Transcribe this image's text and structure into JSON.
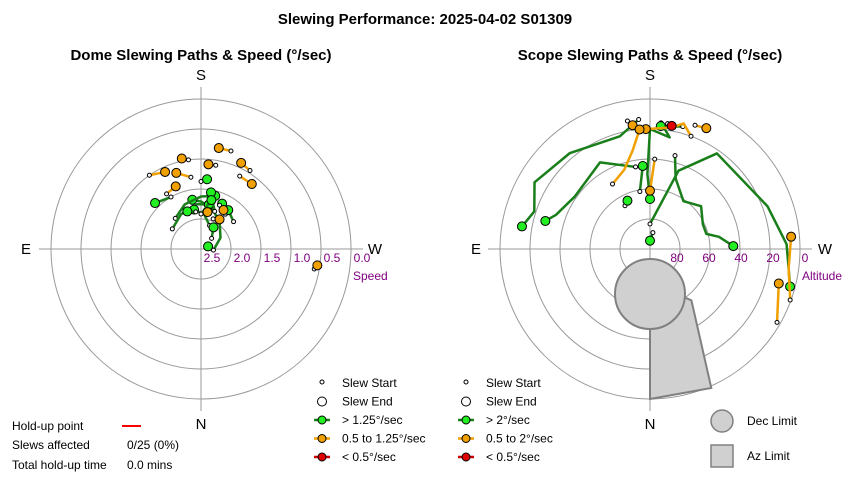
{
  "title": "Slewing Performance: 2025-04-02 S01309",
  "compass": {
    "n": "N",
    "s": "S",
    "e": "E",
    "w": "W"
  },
  "colors": {
    "fast": "#1a7f1a",
    "fast_fill": "#22ee22",
    "mid": "#f0a000",
    "mid_fill": "#f0a000",
    "slow": "#cc0000",
    "slow_fill": "#e00000",
    "grid": "#999999",
    "limit_fill": "#d0d0d0",
    "limit_stroke": "#808080",
    "purple": "#800080",
    "holdup": "#ff0000"
  },
  "stats": {
    "holdup_label": "Hold-up point",
    "affected_label": "Slews affected",
    "affected_value": "0/25 (0%)",
    "total_label": "Total hold-up time",
    "total_value": "0.0 mins"
  },
  "chart_data": [
    {
      "type": "polar-scatter",
      "title": "Dome Slewing Paths & Speed (°/sec)",
      "radial_axis": "Speed",
      "radial_ticks": [
        "2.5",
        "2.0",
        "1.5",
        "1.0",
        "0.5",
        "0.0"
      ],
      "radial_range": [
        3.0,
        0.0
      ],
      "legend": [
        {
          "label": "Slew Start",
          "icon": "small-circle"
        },
        {
          "label": "Slew End",
          "icon": "large-circle"
        },
        {
          "label": "> 1.25°/sec",
          "icon": "line-fast"
        },
        {
          "label": "0.5 to 1.25°/sec",
          "icon": "line-mid"
        },
        {
          "label": "< 0.5°/sec",
          "icon": "line-slow"
        }
      ],
      "slews": [
        {
          "category": "fast",
          "points": [
            [
              275,
              2.75
            ],
            [
              240,
              2.55
            ],
            [
              215,
              2.35
            ],
            [
              195,
              2.15
            ],
            [
              180,
              2.05
            ],
            [
              170,
              2.0
            ]
          ]
        },
        {
          "category": "fast",
          "points": [
            [
              140,
              2.2
            ],
            [
              160,
              2.05
            ],
            [
              180,
              1.95
            ],
            [
              195,
              1.9
            ]
          ]
        },
        {
          "category": "fast",
          "points": [
            [
              125,
              2.3
            ],
            [
              150,
              2.2
            ],
            [
              175,
              2.1
            ],
            [
              190,
              2.1
            ]
          ]
        },
        {
          "category": "fast",
          "points": [
            [
              200,
              2.5
            ],
            [
              185,
              2.3
            ],
            [
              170,
              2.2
            ]
          ]
        },
        {
          "category": "fast",
          "points": [
            [
              215,
              2.15
            ],
            [
              205,
              2.0
            ]
          ]
        },
        {
          "category": "fast",
          "points": [
            [
              200,
              2.2
            ],
            [
              190,
              1.85
            ]
          ]
        },
        {
          "category": "fast",
          "points": [
            [
              180,
              1.65
            ],
            [
              185,
              1.6
            ]
          ]
        },
        {
          "category": "fast",
          "points": [
            [
              180,
              2.3
            ],
            [
              192,
              2.0
            ]
          ]
        },
        {
          "category": "fast",
          "points": [
            [
              172,
              2.25
            ],
            [
              160,
              2.2
            ]
          ]
        },
        {
          "category": "fast",
          "points": [
            [
              230,
              2.15
            ],
            [
              215,
              2.05
            ]
          ]
        },
        {
          "category": "fast",
          "points": [
            [
              225,
              2.7
            ],
            [
              210,
              2.5
            ]
          ]
        },
        {
          "category": "fast",
          "points": [
            [
              255,
              2.8
            ],
            [
              250,
              2.85
            ]
          ]
        },
        {
          "category": "fast",
          "points": [
            [
              150,
              1.8
            ],
            [
              135,
              1.7
            ]
          ]
        },
        {
          "category": "mid",
          "points": [
            [
              197,
              0.95
            ],
            [
              190,
              0.95
            ]
          ]
        },
        {
          "category": "mid",
          "points": [
            [
              212,
              1.15
            ],
            [
              205,
              1.1
            ]
          ]
        },
        {
          "category": "mid",
          "points": [
            [
              208,
              1.35
            ],
            [
              218,
              1.35
            ]
          ]
        },
        {
          "category": "mid",
          "points": [
            [
              145,
              1.2
            ],
            [
              155,
              1.3
            ]
          ]
        },
        {
          "category": "mid",
          "points": [
            [
              172,
              1.2
            ],
            [
              168,
              1.15
            ]
          ]
        },
        {
          "category": "mid",
          "points": [
            [
              172,
              1.55
            ],
            [
              162,
              1.4
            ]
          ]
        },
        {
          "category": "mid",
          "points": [
            [
              148,
              1.7
            ],
            [
              158,
              1.65
            ]
          ]
        },
        {
          "category": "mid",
          "points": [
            [
              203,
              2.05
            ],
            [
              210,
              2.1
            ]
          ]
        },
        {
          "category": "mid",
          "points": [
            [
              202,
              2.35
            ],
            [
              212,
              2.3
            ]
          ]
        },
        {
          "category": "mid",
          "points": [
            [
              280,
              0.7
            ],
            [
              278,
              0.65
            ]
          ]
        },
        {
          "category": "mid",
          "points": [
            [
              190,
              1.3
            ],
            [
              185,
              1.3
            ]
          ]
        },
        {
          "category": "mid",
          "points": [
            [
              192,
              2.2
            ],
            [
              190,
              2.25
            ]
          ]
        }
      ]
    },
    {
      "type": "polar-scatter",
      "title": "Scope Slewing Paths & Speed (°/sec)",
      "radial_axis": "Altitude",
      "radial_ticks": [
        "80",
        "60",
        "40",
        "20",
        "0"
      ],
      "radial_range": [
        90,
        0
      ],
      "legend": [
        {
          "label": "Slew Start",
          "icon": "small-circle"
        },
        {
          "label": "Slew End",
          "icon": "large-circle"
        },
        {
          "label": "> 2°/sec",
          "icon": "line-fast"
        },
        {
          "label": "0.5 to 2°/sec",
          "icon": "line-mid"
        },
        {
          "label": "< 0.5°/sec",
          "icon": "line-slow"
        }
      ],
      "limits": [
        {
          "label": "Dec Limit",
          "icon": "circle-limit"
        },
        {
          "label": "Az Limit",
          "icon": "rect-limit"
        }
      ],
      "dec_limit": {
        "center_az": 0,
        "center_alt": 63,
        "radius_alt": 21
      },
      "az_limit": {
        "alt_top": 70,
        "alt_bottom": 0,
        "az_from": 0,
        "az_to": 340
      },
      "slews": [
        {
          "category": "fast",
          "points": [
            [
              180,
              75
            ],
            [
              200,
              40
            ],
            [
              215,
              20
            ],
            [
              250,
              15
            ],
            [
              268,
              8
            ],
            [
              278,
              6
            ],
            [
              285,
              3
            ]
          ]
        },
        {
          "category": "fast",
          "points": [
            [
              175,
              12
            ],
            [
              165,
              20
            ],
            [
              140,
              15
            ],
            [
              120,
              10
            ],
            [
              108,
              17
            ],
            [
              100,
              12
            ]
          ]
        },
        {
          "category": "fast",
          "points": [
            [
              185,
              14
            ],
            [
              190,
              22
            ],
            [
              180,
              18
            ],
            [
              178,
              45
            ],
            [
              180,
              60
            ]
          ]
        },
        {
          "category": "fast",
          "points": [
            [
              195,
              32
            ],
            [
              200,
              45
            ],
            [
              215,
              55
            ],
            [
              230,
              50
            ],
            [
              245,
              55
            ],
            [
              255,
              55
            ],
            [
              260,
              48
            ],
            [
              268,
              40
            ]
          ]
        },
        {
          "category": "fast",
          "points": [
            [
              170,
              40
            ],
            [
              150,
              30
            ],
            [
              125,
              35
            ],
            [
              110,
              30
            ],
            [
              105,
              25
            ]
          ]
        },
        {
          "category": "fast",
          "points": [
            [
              170,
              55
            ],
            [
              175,
              40
            ]
          ]
        },
        {
          "category": "fast",
          "points": [
            [
              190,
              80
            ],
            [
              180,
              85
            ]
          ]
        },
        {
          "category": "fast",
          "points": [
            [
              195,
              14
            ],
            [
              185,
              16
            ]
          ]
        },
        {
          "category": "fast",
          "points": [
            [
              150,
              60
            ],
            [
              155,
              58
            ]
          ]
        },
        {
          "category": "mid",
          "points": [
            [
              200,
              18
            ],
            [
              195,
              12
            ],
            [
              190,
              16
            ],
            [
              178,
              18
            ]
          ]
        },
        {
          "category": "mid",
          "points": [
            [
              170,
              12
            ],
            [
              172,
              15
            ]
          ]
        },
        {
          "category": "mid",
          "points": [
            [
              150,
              45
            ],
            [
              162,
              40
            ],
            [
              170,
              30
            ],
            [
              175,
              18
            ]
          ]
        },
        {
          "category": "mid",
          "points": [
            [
              290,
              0.5
            ],
            [
              278,
              6
            ],
            [
              265,
              5
            ]
          ]
        },
        {
          "category": "mid",
          "points": [
            [
              300,
              2
            ],
            [
              285,
              10
            ]
          ]
        },
        {
          "category": "mid",
          "points": [
            [
              183,
              36
            ],
            [
              180,
              55
            ]
          ]
        },
        {
          "category": "mid",
          "points": [
            [
              200,
              11
            ],
            [
              205,
              10
            ]
          ]
        },
        {
          "category": "slow",
          "points": [
            [
              188,
              14
            ],
            [
              190,
              15
            ]
          ]
        }
      ]
    }
  ]
}
